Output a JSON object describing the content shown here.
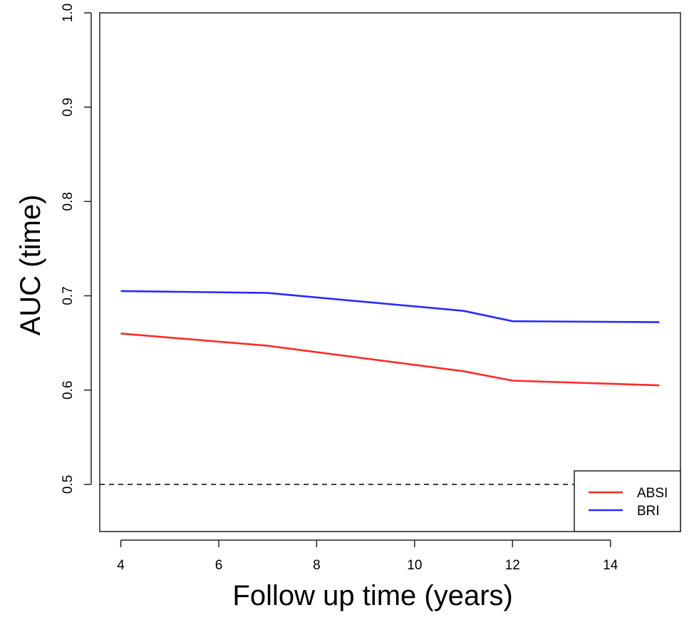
{
  "chart_data": {
    "type": "line",
    "title": "",
    "xlabel": "Follow up time (years)",
    "ylabel": "AUC (time)",
    "xlim": [
      4,
      15
    ],
    "ylim": [
      0.45,
      1.0
    ],
    "xticks": [
      4,
      6,
      8,
      10,
      12,
      14
    ],
    "yticks": [
      0.5,
      0.6,
      0.7,
      0.8,
      0.9,
      1.0
    ],
    "xtick_labels": [
      "4",
      "6",
      "8",
      "10",
      "12",
      "14"
    ],
    "ytick_labels": [
      "0.5",
      "0.6",
      "0.7",
      "0.8",
      "0.9",
      "1.0"
    ],
    "grid": false,
    "legend_position": "bottom-right",
    "reference_line": {
      "y": 0.5,
      "style": "dashed",
      "color": "#000000"
    },
    "series": [
      {
        "name": "ABSI",
        "color": "#ff2a2a",
        "x": [
          4,
          7,
          11,
          12,
          15
        ],
        "y": [
          0.66,
          0.647,
          0.62,
          0.61,
          0.605
        ]
      },
      {
        "name": "BRI",
        "color": "#2a2aff",
        "x": [
          4,
          7,
          11,
          12,
          15
        ],
        "y": [
          0.705,
          0.703,
          0.684,
          0.673,
          0.672
        ]
      }
    ]
  }
}
